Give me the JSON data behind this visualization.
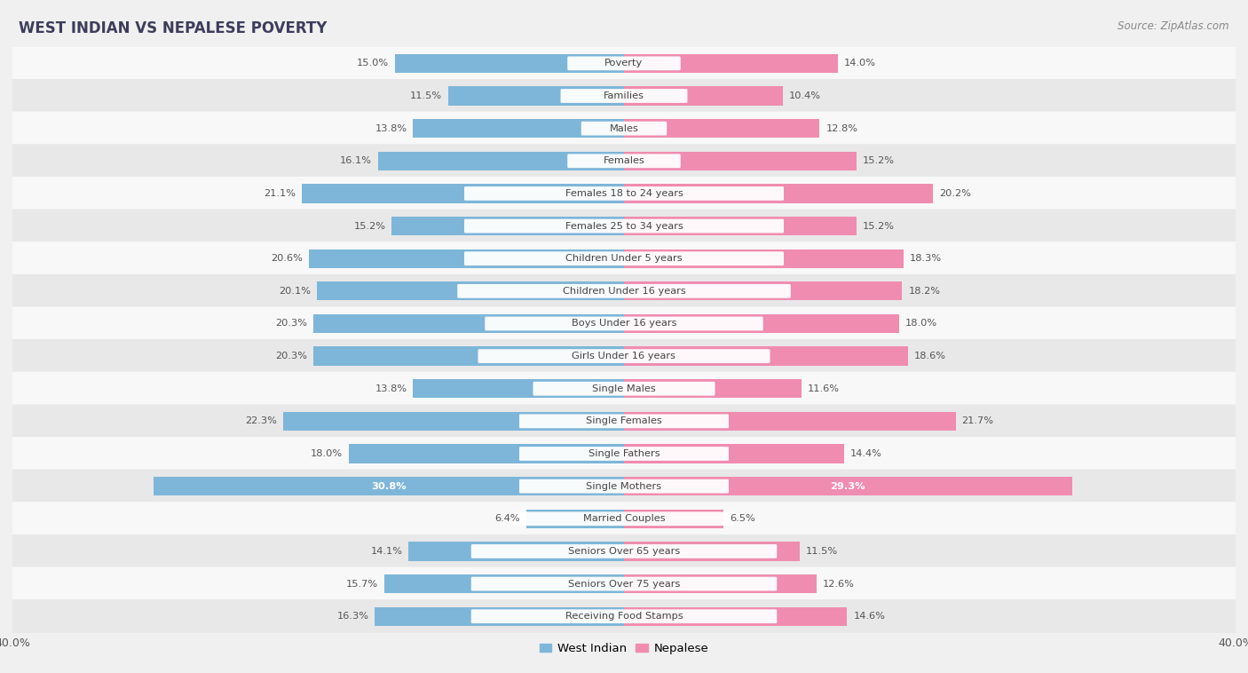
{
  "title": "WEST INDIAN VS NEPALESE POVERTY",
  "source": "Source: ZipAtlas.com",
  "categories": [
    "Poverty",
    "Families",
    "Males",
    "Females",
    "Females 18 to 24 years",
    "Females 25 to 34 years",
    "Children Under 5 years",
    "Children Under 16 years",
    "Boys Under 16 years",
    "Girls Under 16 years",
    "Single Males",
    "Single Females",
    "Single Fathers",
    "Single Mothers",
    "Married Couples",
    "Seniors Over 65 years",
    "Seniors Over 75 years",
    "Receiving Food Stamps"
  ],
  "west_indian": [
    15.0,
    11.5,
    13.8,
    16.1,
    21.1,
    15.2,
    20.6,
    20.1,
    20.3,
    20.3,
    13.8,
    22.3,
    18.0,
    30.8,
    6.4,
    14.1,
    15.7,
    16.3
  ],
  "nepalese": [
    14.0,
    10.4,
    12.8,
    15.2,
    20.2,
    15.2,
    18.3,
    18.2,
    18.0,
    18.6,
    11.6,
    21.7,
    14.4,
    29.3,
    6.5,
    11.5,
    12.6,
    14.6
  ],
  "west_indian_color": "#7EB6D9",
  "nepalese_color": "#F08CB0",
  "background_color": "#f0f0f0",
  "row_bg_light": "#f8f8f8",
  "row_bg_dark": "#e8e8e8",
  "axis_max": 40.0,
  "bar_height": 0.58,
  "legend_west_indian": "West Indian",
  "legend_nepalese": "Nepalese"
}
